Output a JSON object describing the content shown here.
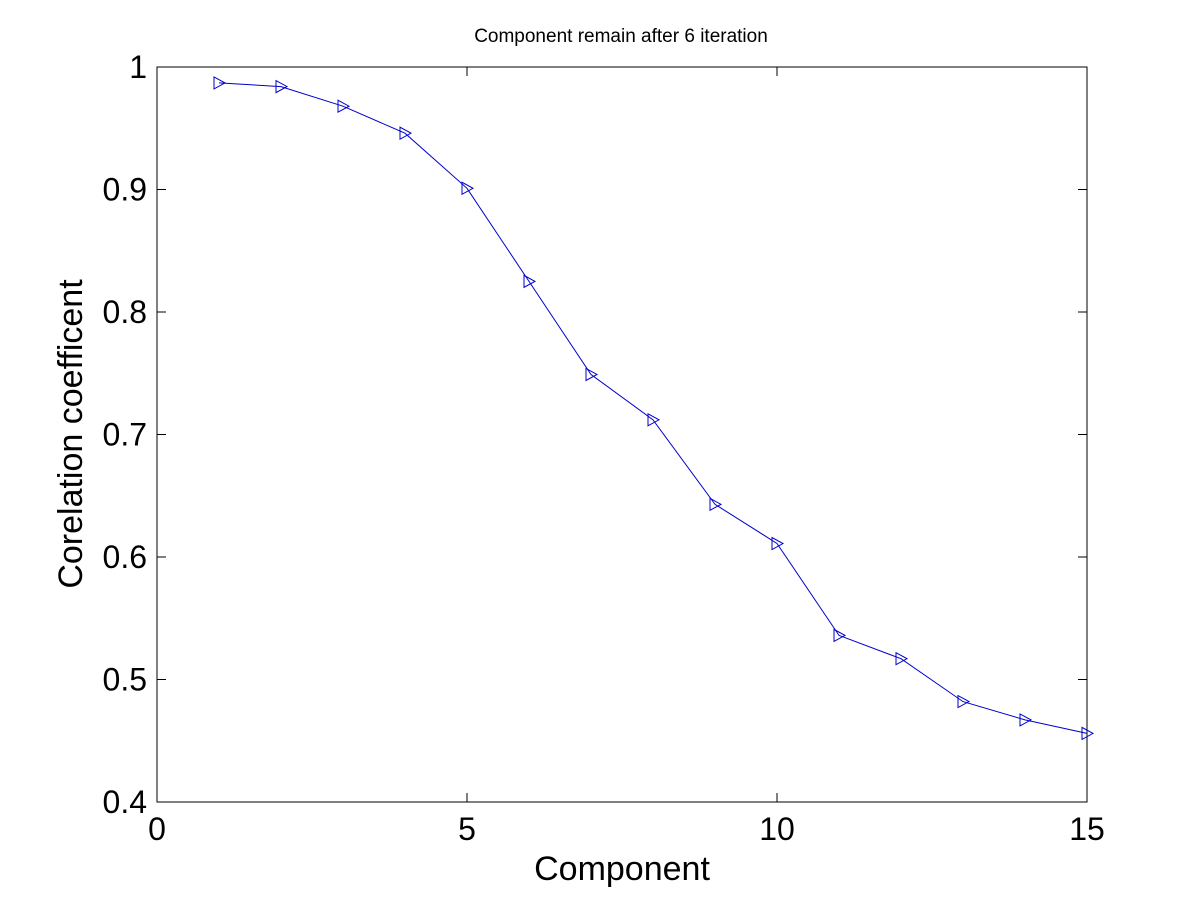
{
  "chart_data": {
    "type": "line",
    "title": "Component remain after 6 iteration",
    "xlabel": "Component",
    "ylabel": "Corelation coefficent",
    "xlim": [
      0,
      15
    ],
    "ylim": [
      0.4,
      1.0
    ],
    "xticks": [
      0,
      5,
      10,
      15
    ],
    "xtick_labels": [
      "0",
      "5",
      "10",
      "15"
    ],
    "yticks": [
      0.4,
      0.5,
      0.6,
      0.7,
      0.8,
      0.9,
      1.0
    ],
    "ytick_labels": [
      "0.4",
      "0.5",
      "0.6",
      "0.7",
      "0.8",
      "0.9",
      "1"
    ],
    "grid": false,
    "marker": "right-triangle",
    "series": [
      {
        "color": "#0000cc",
        "x": [
          1,
          2,
          3,
          4,
          5,
          6,
          7,
          8,
          9,
          10,
          11,
          12,
          13,
          14,
          15
        ],
        "y": [
          0.987,
          0.984,
          0.968,
          0.946,
          0.901,
          0.825,
          0.749,
          0.712,
          0.643,
          0.611,
          0.536,
          0.517,
          0.482,
          0.467,
          0.456
        ]
      }
    ]
  }
}
